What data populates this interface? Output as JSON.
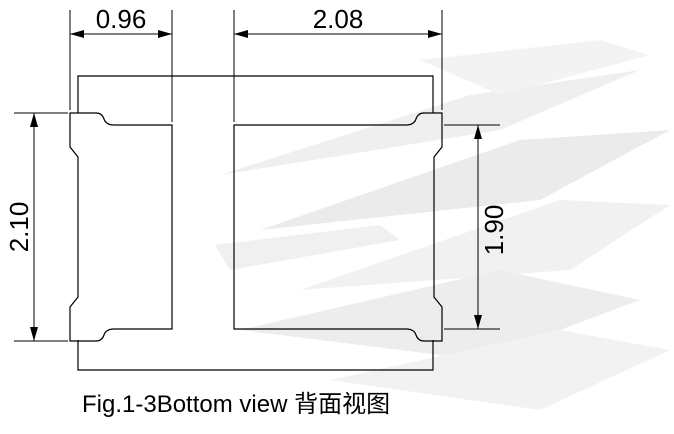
{
  "drawing": {
    "dimensions": {
      "left_pad_width": "0.96",
      "right_pad_width": "2.08",
      "overall_height": "2.10",
      "pad_height": "1.90"
    },
    "caption": "Fig.1-3Bottom view 背面视图"
  },
  "colors": {
    "line": "#000000",
    "background": "#ffffff",
    "watermark": "#d8d8d8"
  }
}
